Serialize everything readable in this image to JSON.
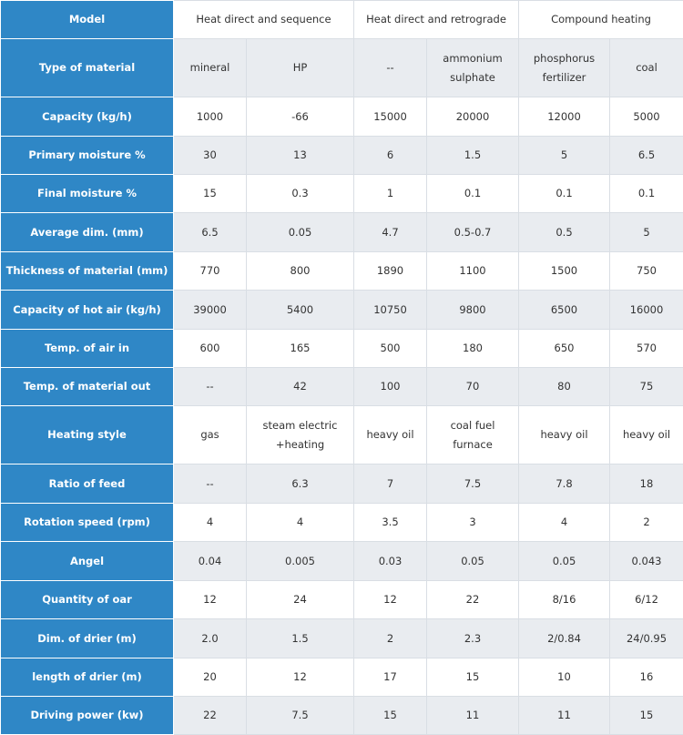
{
  "table": {
    "header": {
      "label": "Model",
      "groups": [
        "Heat direct and sequence",
        "Heat direct and retrograde",
        "Compound heating"
      ]
    },
    "rows": [
      {
        "label": "Type of material",
        "cells": [
          "mineral",
          "HP",
          "--",
          "ammonium sulphate",
          "phosphorus fertilizer",
          "coal"
        ]
      },
      {
        "label": "Capacity (kg/h)",
        "cells": [
          "1000",
          "-66",
          "15000",
          "20000",
          "12000",
          "5000"
        ]
      },
      {
        "label": "Primary moisture %",
        "cells": [
          "30",
          "13",
          "6",
          "1.5",
          "5",
          "6.5"
        ]
      },
      {
        "label": "Final moisture %",
        "cells": [
          "15",
          "0.3",
          "1",
          "0.1",
          "0.1",
          "0.1"
        ]
      },
      {
        "label": "Average dim. (mm)",
        "cells": [
          "6.5",
          "0.05",
          "4.7",
          "0.5-0.7",
          "0.5",
          "5"
        ]
      },
      {
        "label": "Thickness of material (mm)",
        "cells": [
          "770",
          "800",
          "1890",
          "1100",
          "1500",
          "750"
        ]
      },
      {
        "label": "Capacity of hot air (kg/h)",
        "cells": [
          "39000",
          "5400",
          "10750",
          "9800",
          "6500",
          "16000"
        ]
      },
      {
        "label": "Temp. of air in",
        "cells": [
          "600",
          "165",
          "500",
          "180",
          "650",
          "570"
        ]
      },
      {
        "label": "Temp. of material out",
        "cells": [
          "--",
          "42",
          "100",
          "70",
          "80",
          "75"
        ]
      },
      {
        "label": "Heating style",
        "cells": [
          "gas",
          "steam electric +heating",
          "heavy oil",
          "coal fuel furnace",
          "heavy oil",
          "heavy oil"
        ]
      },
      {
        "label": "Ratio of feed",
        "cells": [
          "--",
          "6.3",
          "7",
          "7.5",
          "7.8",
          "18"
        ]
      },
      {
        "label": "Rotation speed (rpm)",
        "cells": [
          "4",
          "4",
          "3.5",
          "3",
          "4",
          "2"
        ]
      },
      {
        "label": "Angel",
        "cells": [
          "0.04",
          "0.005",
          "0.03",
          "0.05",
          "0.05",
          "0.043"
        ]
      },
      {
        "label": "Quantity of oar",
        "cells": [
          "12",
          "24",
          "12",
          "22",
          "8/16",
          "6/12"
        ]
      },
      {
        "label": "Dim. of drier (m)",
        "cells": [
          "2.0",
          "1.5",
          "2",
          "2.3",
          "2/0.84",
          "24/0.95"
        ]
      },
      {
        "label": "length of drier (m)",
        "cells": [
          "20",
          "12",
          "17",
          "15",
          "10",
          "16"
        ]
      },
      {
        "label": "Driving power (kw)",
        "cells": [
          "22",
          "7.5",
          "15",
          "11",
          "11",
          "15"
        ]
      }
    ]
  },
  "colors": {
    "header_blue": "#2f87c6",
    "row_alt": "#e9ecf0",
    "row_white": "#ffffff",
    "text": "#333333"
  }
}
